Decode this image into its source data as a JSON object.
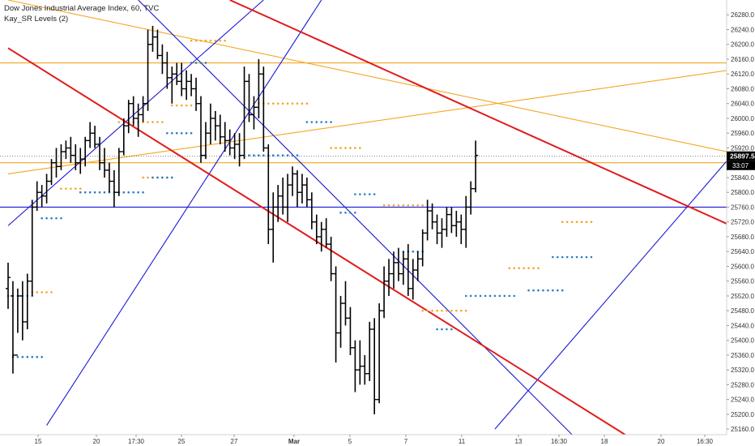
{
  "header": {
    "title": "Dow Jones Industrial Average Index, 60, TVC",
    "indicator": "Kay_SR Levels (2)"
  },
  "colors": {
    "background": "#ffffff",
    "bars": "#000000",
    "resistance_dots": "#f5a623",
    "support_dots": "#2a7fc4",
    "channel_blue": "#1a1ad6",
    "channel_red": "#e01b1b",
    "orange_lines": "#f5a623",
    "price_label_bg": "#000000",
    "axis_text": "#333333"
  },
  "chart_data": {
    "type": "ohlc",
    "ylim": [
      25145,
      26320
    ],
    "y_ticks": [
      "26280.0",
      "26240.0",
      "26200.0",
      "26160.0",
      "26120.0",
      "26080.0",
      "26040.0",
      "26000.0",
      "25960.0",
      "25920.0",
      "25880.0",
      "25840.0",
      "25800.0",
      "25760.0",
      "25720.0",
      "25680.0",
      "25640.0",
      "25600.0",
      "25560.0",
      "25520.0",
      "25480.0",
      "25440.0",
      "25400.0",
      "25360.0",
      "25320.0",
      "25280.0",
      "25240.0",
      "25200.0",
      "25160.0"
    ],
    "x_ticks": [
      "15",
      "20",
      "17:30",
      "25",
      "27",
      "Mar",
      "5",
      "7",
      "11",
      "13",
      "16:30",
      "18",
      "20",
      "16:30"
    ],
    "last_price": "25897.5",
    "countdown": "33:07",
    "bars": [
      [
        25540,
        25610,
        25485,
        25570
      ],
      [
        25520,
        25560,
        25310,
        25360
      ],
      [
        25360,
        25540,
        25420,
        25520
      ],
      [
        25520,
        25560,
        25400,
        25450
      ],
      [
        25450,
        25580,
        25430,
        25560
      ],
      [
        25560,
        25780,
        25520,
        25760
      ],
      [
        25760,
        25830,
        25750,
        25800
      ],
      [
        25800,
        25820,
        25760,
        25790
      ],
      [
        25790,
        25850,
        25770,
        25830
      ],
      [
        25830,
        25890,
        25820,
        25880
      ],
      [
        25880,
        25920,
        25840,
        25870
      ],
      [
        25870,
        25930,
        25860,
        25910
      ],
      [
        25910,
        25940,
        25890,
        25920
      ],
      [
        25920,
        25950,
        25880,
        25900
      ],
      [
        25900,
        25930,
        25860,
        25880
      ],
      [
        25880,
        25920,
        25850,
        25890
      ],
      [
        25890,
        25950,
        25870,
        25940
      ],
      [
        25940,
        25990,
        25920,
        25960
      ],
      [
        25960,
        25980,
        25920,
        25930
      ],
      [
        25930,
        25950,
        25860,
        25880
      ],
      [
        25880,
        25920,
        25840,
        25860
      ],
      [
        25860,
        25880,
        25800,
        25830
      ],
      [
        25830,
        25860,
        25760,
        25800
      ],
      [
        25800,
        25920,
        25790,
        25910
      ],
      [
        25910,
        26000,
        25900,
        25980
      ],
      [
        25980,
        26050,
        25960,
        26040
      ],
      [
        26040,
        26060,
        25980,
        26000
      ],
      [
        26000,
        26040,
        25950,
        26010
      ],
      [
        26010,
        26060,
        25990,
        26040
      ],
      [
        26040,
        26240,
        26020,
        26200
      ],
      [
        26200,
        26250,
        26180,
        26220
      ],
      [
        26220,
        26240,
        26160,
        26170
      ],
      [
        26170,
        26200,
        26120,
        26150
      ],
      [
        26150,
        26180,
        26080,
        26110
      ],
      [
        26110,
        26140,
        26040,
        26120
      ],
      [
        26120,
        26150,
        26090,
        26100
      ],
      [
        26100,
        26150,
        26060,
        26080
      ],
      [
        26080,
        26130,
        26050,
        26100
      ],
      [
        26100,
        26120,
        26060,
        26080
      ],
      [
        26080,
        26110,
        26020,
        26040
      ],
      [
        26040,
        26060,
        25880,
        25900
      ],
      [
        25900,
        25990,
        25890,
        25960
      ],
      [
        25960,
        26040,
        25930,
        26000
      ],
      [
        26000,
        26020,
        25940,
        25980
      ],
      [
        25980,
        26010,
        25930,
        25950
      ],
      [
        25950,
        25990,
        25910,
        25940
      ],
      [
        25940,
        25970,
        25900,
        25920
      ],
      [
        25920,
        25960,
        25890,
        25930
      ],
      [
        25930,
        25960,
        25870,
        25900
      ],
      [
        25900,
        26140,
        25890,
        26100
      ],
      [
        26100,
        26120,
        25990,
        26010
      ],
      [
        26010,
        26060,
        25970,
        26030
      ],
      [
        26030,
        26160,
        26000,
        26120
      ],
      [
        26120,
        26140,
        25910,
        25920
      ],
      [
        25920,
        25930,
        25660,
        25700
      ],
      [
        25700,
        25800,
        25610,
        25760
      ],
      [
        25760,
        25820,
        25720,
        25790
      ],
      [
        25790,
        25840,
        25740,
        25760
      ],
      [
        25760,
        25850,
        25720,
        25820
      ],
      [
        25820,
        25870,
        25790,
        25850
      ],
      [
        25850,
        25860,
        25760,
        25800
      ],
      [
        25800,
        25850,
        25770,
        25820
      ],
      [
        25820,
        25840,
        25760,
        25780
      ],
      [
        25780,
        25800,
        25700,
        25720
      ],
      [
        25720,
        25740,
        25660,
        25680
      ],
      [
        25680,
        25720,
        25640,
        25700
      ],
      [
        25700,
        25730,
        25650,
        25660
      ],
      [
        25660,
        25680,
        25560,
        25580
      ],
      [
        25580,
        25600,
        25340,
        25420
      ],
      [
        25420,
        25520,
        25380,
        25500
      ],
      [
        25500,
        25560,
        25440,
        25460
      ],
      [
        25460,
        25490,
        25360,
        25380
      ],
      [
        25380,
        25400,
        25260,
        25320
      ],
      [
        25320,
        25400,
        25280,
        25330
      ],
      [
        25330,
        25360,
        25280,
        25310
      ],
      [
        25310,
        25450,
        25290,
        25430
      ],
      [
        25430,
        25460,
        25200,
        25240
      ],
      [
        25240,
        25500,
        25230,
        25480
      ],
      [
        25480,
        25600,
        25460,
        25560
      ],
      [
        25560,
        25620,
        25520,
        25580
      ],
      [
        25580,
        25640,
        25540,
        25610
      ],
      [
        25610,
        25650,
        25560,
        25580
      ],
      [
        25580,
        25640,
        25550,
        25620
      ],
      [
        25620,
        25660,
        25520,
        25540
      ],
      [
        25540,
        25620,
        25510,
        25590
      ],
      [
        25590,
        25640,
        25560,
        25620
      ],
      [
        25620,
        25700,
        25600,
        25690
      ],
      [
        25690,
        25780,
        25670,
        25750
      ],
      [
        25750,
        25770,
        25700,
        25720
      ],
      [
        25720,
        25740,
        25660,
        25690
      ],
      [
        25690,
        25730,
        25650,
        25700
      ],
      [
        25700,
        25760,
        25680,
        25740
      ],
      [
        25740,
        25760,
        25690,
        25710
      ],
      [
        25710,
        25750,
        25680,
        25720
      ],
      [
        25720,
        25740,
        25660,
        25700
      ],
      [
        25700,
        25790,
        25650,
        25760
      ],
      [
        25760,
        25830,
        25740,
        25810
      ],
      [
        25810,
        25940,
        25800,
        25900
      ]
    ],
    "sr_levels": [
      {
        "kind": "support",
        "value": 25520,
        "from": 0,
        "to": 5
      },
      {
        "kind": "resistance",
        "value": 25530,
        "from": 5,
        "to": 9
      },
      {
        "kind": "support",
        "value": 25355,
        "from": 1,
        "to": 7
      },
      {
        "kind": "support",
        "value": 25730,
        "from": 7,
        "to": 11
      },
      {
        "kind": "resistance",
        "value": 25810,
        "from": 11,
        "to": 15
      },
      {
        "kind": "support",
        "value": 25800,
        "from": 15,
        "to": 28
      },
      {
        "kind": "resistance",
        "value": 25990,
        "from": 23,
        "to": 32
      },
      {
        "kind": "resistance",
        "value": 25840,
        "from": 28,
        "to": 34
      },
      {
        "kind": "support",
        "value": 25840,
        "from": 30,
        "to": 34
      },
      {
        "kind": "resistance",
        "value": 26035,
        "from": 34,
        "to": 38
      },
      {
        "kind": "support",
        "value": 25960,
        "from": 33,
        "to": 38
      },
      {
        "kind": "resistance",
        "value": 26210,
        "from": 38,
        "to": 45
      },
      {
        "kind": "support",
        "value": 26150,
        "from": 38,
        "to": 41
      },
      {
        "kind": "support",
        "value": 25900,
        "from": 50,
        "to": 60
      },
      {
        "kind": "resistance",
        "value": 26040,
        "from": 51,
        "to": 62
      },
      {
        "kind": "support",
        "value": 25990,
        "from": 62,
        "to": 67
      },
      {
        "kind": "resistance",
        "value": 25920,
        "from": 67,
        "to": 73
      },
      {
        "kind": "support",
        "value": 25745,
        "from": 69,
        "to": 72
      },
      {
        "kind": "support",
        "value": 25795,
        "from": 72,
        "to": 76
      },
      {
        "kind": "resistance",
        "value": 25765,
        "from": 78,
        "to": 86
      },
      {
        "kind": "support",
        "value": 25640,
        "from": 82,
        "to": 86
      },
      {
        "kind": "resistance",
        "value": 25480,
        "from": 86,
        "to": 95
      },
      {
        "kind": "support",
        "value": 25430,
        "from": 89,
        "to": 92
      },
      {
        "kind": "support",
        "value": 25520,
        "from": 95,
        "to": 105
      },
      {
        "kind": "resistance",
        "value": 25595,
        "from": 104,
        "to": 110
      },
      {
        "kind": "support",
        "value": 25535,
        "from": 108,
        "to": 115
      },
      {
        "kind": "resistance",
        "value": 25720,
        "from": 115,
        "to": 121
      },
      {
        "kind": "support",
        "value": 25625,
        "from": 113,
        "to": 121
      }
    ],
    "lines": [
      {
        "color": "orange",
        "from": [
          0,
          26320
        ],
        "to": [
          160,
          25880
        ]
      },
      {
        "color": "orange",
        "from": [
          0,
          25850
        ],
        "to": [
          160,
          26150
        ]
      },
      {
        "color": "orange",
        "type": "horizontal",
        "value": 26150
      },
      {
        "color": "orange",
        "type": "horizontal",
        "value": 25880
      },
      {
        "color": "blue",
        "type": "horizontal",
        "value": 25760
      },
      {
        "color": "blue",
        "from": [
          0,
          25710
        ],
        "to": [
          53,
          26320
        ]
      },
      {
        "color": "blue",
        "from": [
          8,
          25170
        ],
        "to": [
          65,
          26320
        ]
      },
      {
        "color": "blue",
        "from": [
          27,
          26320
        ],
        "to": [
          117,
          25145
        ]
      },
      {
        "color": "blue",
        "from": [
          101,
          25160
        ],
        "to": [
          178,
          26320
        ]
      },
      {
        "color": "red",
        "from": [
          0,
          26190
        ],
        "to": [
          128,
          25145
        ]
      },
      {
        "color": "red",
        "from": [
          46,
          26320
        ],
        "to": [
          196,
          25440
        ]
      }
    ]
  }
}
